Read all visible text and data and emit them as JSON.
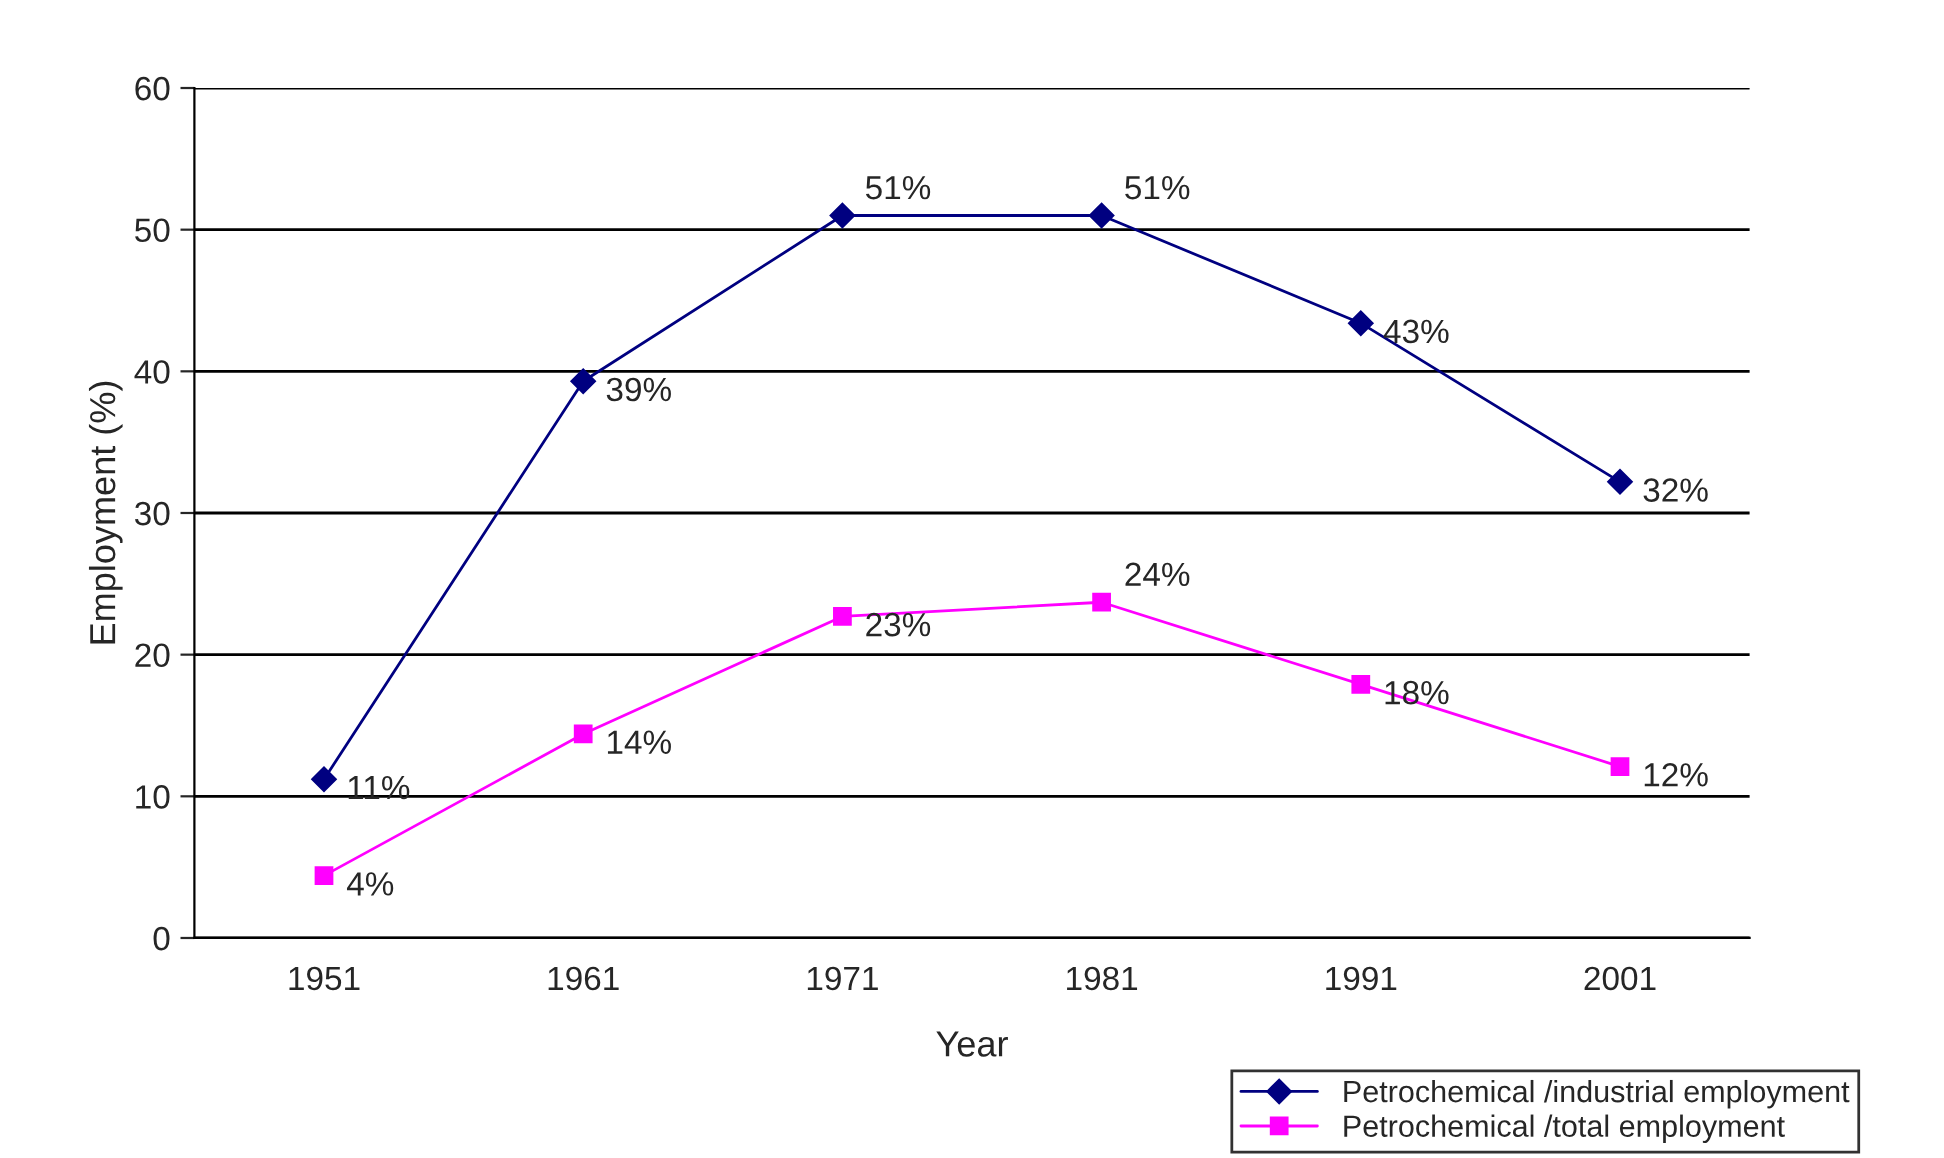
{
  "chart_data": {
    "type": "line",
    "xlabel": "Year",
    "ylabel": "Employment (%)",
    "categories": [
      "1951",
      "1961",
      "1971",
      "1981",
      "1991",
      "2001"
    ],
    "series": [
      {
        "name": "Petrochemical /industrial employment",
        "color": "#000080",
        "marker": "diamond",
        "values": [
          11.2,
          39.3,
          51.0,
          51.0,
          43.4,
          32.2
        ],
        "value_labels": [
          "11%",
          "39%",
          "51%",
          "51%",
          "43%",
          "32%"
        ]
      },
      {
        "name": "Petrochemical /total employment",
        "color": "#ff00ff",
        "marker": "square",
        "values": [
          4.4,
          14.4,
          22.7,
          23.7,
          17.9,
          12.1
        ],
        "value_labels": [
          "4%",
          "14%",
          "23%",
          "24%",
          "18%",
          "12%"
        ]
      }
    ],
    "ylim": [
      0,
      60
    ],
    "yticks": [
      0,
      10,
      20,
      30,
      40,
      50,
      60
    ],
    "grid": "y",
    "legend": "bottom right",
    "line_style": "solid"
  }
}
